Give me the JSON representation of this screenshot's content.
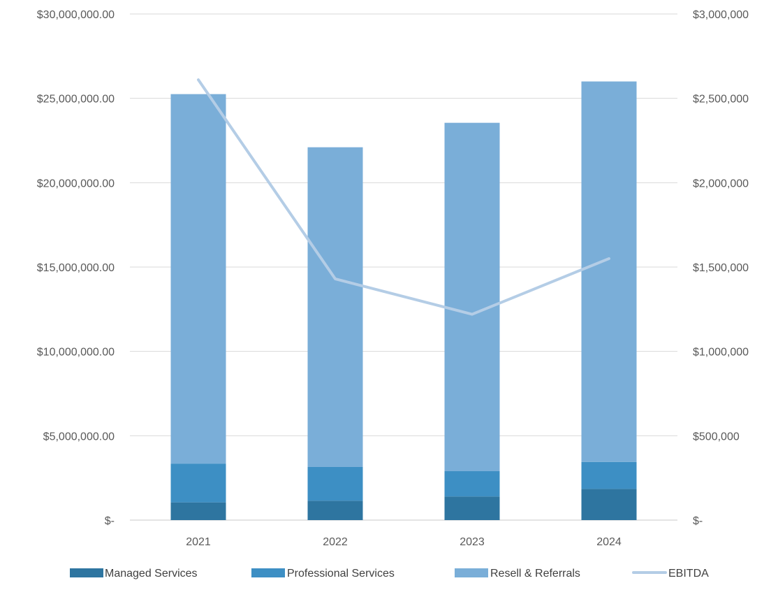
{
  "chart_data": {
    "type": "bar",
    "stacked": true,
    "categories": [
      "2021",
      "2022",
      "2023",
      "2024"
    ],
    "series": [
      {
        "name": "Managed Services",
        "type": "bar",
        "axis": "left",
        "color": "#2e75a0",
        "values": [
          1050000,
          1150000,
          1400000,
          1850000
        ]
      },
      {
        "name": "Professional Services",
        "type": "bar",
        "axis": "left",
        "color": "#3d8fc4",
        "values": [
          2300000,
          2000000,
          1500000,
          1600000
        ]
      },
      {
        "name": "Resell & Referrals",
        "type": "bar",
        "axis": "left",
        "color": "#7aaed8",
        "values": [
          21900000,
          18950000,
          20650000,
          22550000
        ]
      },
      {
        "name": "EBITDA",
        "type": "line",
        "axis": "right",
        "color": "#b4cde6",
        "values": [
          2610000,
          1430000,
          1220000,
          1550000
        ]
      }
    ],
    "y_left": {
      "ylim": [
        0,
        30000000
      ],
      "ticks": [
        0,
        5000000,
        10000000,
        15000000,
        20000000,
        25000000,
        30000000
      ],
      "tick_labels": [
        "$-",
        "$5,000,000.00",
        "$10,000,000.00",
        "$15,000,000.00",
        "$20,000,000.00",
        "$25,000,000.00",
        "$30,000,000.00"
      ]
    },
    "y_right": {
      "ylim": [
        0,
        3000000
      ],
      "ticks": [
        0,
        500000,
        1000000,
        1500000,
        2000000,
        2500000,
        3000000
      ],
      "tick_labels": [
        "$-",
        "$500,000",
        "$1,000,000",
        "$1,500,000",
        "$2,000,000",
        "$2,500,000",
        "$3,000,000"
      ]
    },
    "grid": true,
    "legend": "bottom"
  }
}
